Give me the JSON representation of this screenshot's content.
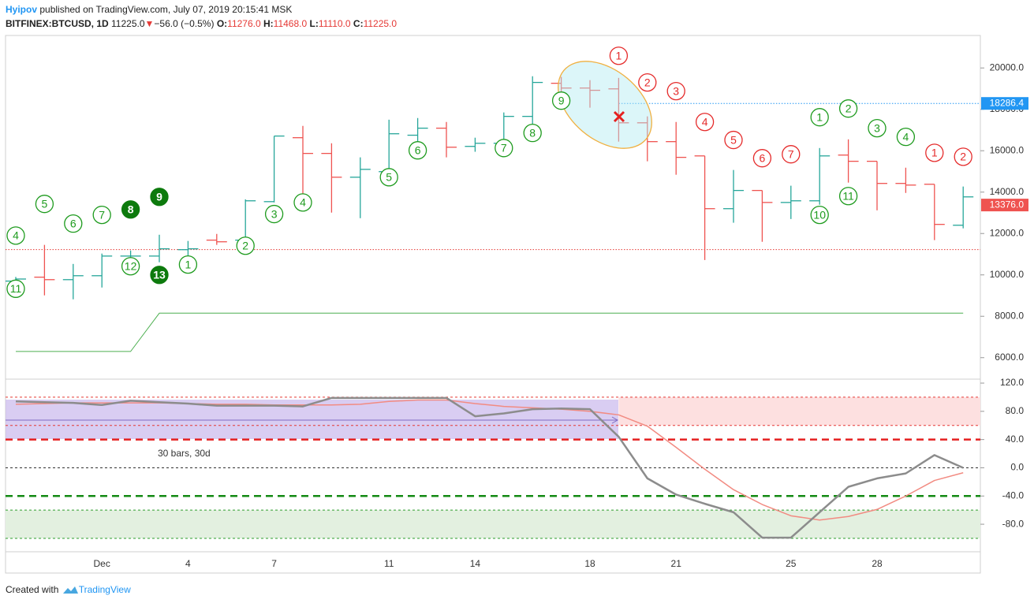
{
  "header": {
    "author": "Hyipov",
    "published": "published on TradingView.com, July 07, 2019 20:15:41 MSK",
    "symbol": "BITFINEX:BTCUSD, 1D",
    "last": "11225.0",
    "arrow": "▼",
    "change": "−56.0 (−0.5%)",
    "o_label": "O:",
    "o": "11276.0",
    "h_label": "H:",
    "h": "11468.0",
    "l_label": "L:",
    "l": "11110.0",
    "c_label": "C:",
    "c": "11225.0"
  },
  "measure": {
    "text": "30 bars, 30d"
  },
  "footer": {
    "created": "Created with",
    "brand": "TradingView"
  },
  "chart_data": [
    {
      "type": "ohlc",
      "categories": [
        null,
        null,
        null,
        "Dec",
        null,
        null,
        "4",
        null,
        null,
        "7",
        null,
        null,
        null,
        "11",
        null,
        null,
        "14",
        null,
        null,
        null,
        "18",
        null,
        null,
        "21",
        null,
        null,
        null,
        "25",
        null,
        null,
        "28",
        null,
        null,
        null
      ],
      "open": [
        9700,
        9890,
        9770,
        9960,
        10910,
        10910,
        11220,
        11680,
        11680,
        13540,
        16630,
        15870,
        14720,
        14990,
        16750,
        17090,
        16210,
        16360,
        17660,
        19260,
        19030,
        18990,
        17350,
        16440,
        15750,
        13200,
        14080,
        13500,
        13580,
        15790,
        15490,
        14420,
        14380,
        12400
      ],
      "high": [
        9900,
        11450,
        10530,
        11030,
        11180,
        11940,
        11640,
        11980,
        13650,
        16710,
        17200,
        16360,
        15680,
        17500,
        17580,
        17390,
        16630,
        17850,
        19600,
        19570,
        19410,
        19520,
        17660,
        17390,
        15750,
        15070,
        14080,
        14310,
        16130,
        16550,
        15490,
        15180,
        14380,
        14270
      ],
      "low": [
        9600,
        9010,
        8820,
        9390,
        10720,
        10610,
        10720,
        11450,
        11680,
        13500,
        13770,
        13010,
        12740,
        14920,
        16440,
        15680,
        15950,
        16060,
        17120,
        18730,
        18080,
        16440,
        15490,
        14840,
        10720,
        12520,
        11600,
        12700,
        13390,
        14460,
        13120,
        13960,
        11680,
        12250
      ],
      "close": [
        9800,
        9770,
        9960,
        10910,
        10910,
        11260,
        11260,
        11600,
        13580,
        16710,
        15870,
        14720,
        15100,
        16820,
        17090,
        16170,
        16360,
        17660,
        19300,
        19030,
        18920,
        17350,
        16440,
        15680,
        13200,
        14080,
        13500,
        13580,
        15750,
        15490,
        14420,
        14340,
        12440,
        13770
      ],
      "up_color": "#26a69a",
      "down_color": "#ef5350",
      "lines": [
        {
          "color": "#4caf50",
          "values": [
            6300,
            6300,
            6300,
            6300,
            6300,
            8150,
            8150,
            8150,
            8150,
            8150,
            8150,
            8150,
            8150,
            8150,
            8150,
            8150,
            8150,
            8150,
            8150,
            8150,
            8150,
            8150,
            8150,
            8150,
            8150,
            8150,
            8150,
            8150,
            8150,
            8150,
            8150,
            8150,
            8150,
            8150
          ]
        }
      ],
      "levels": [
        {
          "value": 11225,
          "color": "#e53935",
          "style": "dotted"
        },
        {
          "value": 18286.4,
          "label": "18286.4",
          "start": 21,
          "color": "#2196f3",
          "style": "dotted"
        }
      ],
      "price_tag": {
        "value": 13376,
        "label": "13376.0",
        "color": "#ef5350"
      },
      "ylim": [
        5000,
        21570
      ],
      "yticks": [
        {
          "value": 6000,
          "label": "6000.0"
        },
        {
          "value": 8000,
          "label": "8000.0"
        },
        {
          "value": 10000,
          "label": "10000.0"
        },
        {
          "value": 12000,
          "label": "12000.0"
        },
        {
          "value": 14000,
          "label": "14000.0"
        },
        {
          "value": 16000,
          "label": "16000.0"
        },
        {
          "value": 18000,
          "label": "18000.0"
        },
        {
          "value": 20000,
          "label": "20000.0"
        }
      ],
      "annotations": [
        {
          "text": "4",
          "at": 0,
          "price": 11900,
          "color": "#1e9b1e",
          "filled": false
        },
        {
          "text": "11",
          "at": 0,
          "price": 9330,
          "color": "#1e9b1e",
          "filled": false
        },
        {
          "text": "5",
          "at": 1,
          "price": 13430,
          "color": "#1e9b1e",
          "filled": false
        },
        {
          "text": "6",
          "at": 2,
          "price": 12480,
          "color": "#1e9b1e",
          "filled": false
        },
        {
          "text": "7",
          "at": 3,
          "price": 12900,
          "color": "#1e9b1e",
          "filled": false
        },
        {
          "text": "8",
          "at": 4,
          "price": 13160,
          "color": "#0d7a0d",
          "filled": true
        },
        {
          "text": "9",
          "at": 5,
          "price": 13770,
          "color": "#0d7a0d",
          "filled": true
        },
        {
          "text": "12",
          "at": 4,
          "price": 10420,
          "color": "#1e9b1e",
          "filled": false
        },
        {
          "text": "13",
          "at": 5,
          "price": 10000,
          "color": "#0d7a0d",
          "filled": true
        },
        {
          "text": "1",
          "at": 6,
          "price": 10500,
          "color": "#1e9b1e",
          "filled": false
        },
        {
          "text": "2",
          "at": 8,
          "price": 11410,
          "color": "#1e9b1e",
          "filled": false
        },
        {
          "text": "3",
          "at": 9,
          "price": 12940,
          "color": "#1e9b1e",
          "filled": false
        },
        {
          "text": "4",
          "at": 10,
          "price": 13500,
          "color": "#1e9b1e",
          "filled": false
        },
        {
          "text": "5",
          "at": 13,
          "price": 14720,
          "color": "#1e9b1e",
          "filled": false
        },
        {
          "text": "6",
          "at": 14,
          "price": 16020,
          "color": "#1e9b1e",
          "filled": false
        },
        {
          "text": "7",
          "at": 17,
          "price": 16130,
          "color": "#1e9b1e",
          "filled": false
        },
        {
          "text": "8",
          "at": 18,
          "price": 16860,
          "color": "#1e9b1e",
          "filled": false
        },
        {
          "text": "9",
          "at": 19,
          "price": 18420,
          "color": "#1e9b1e",
          "filled": false
        },
        {
          "text": "1",
          "at": 21,
          "price": 20590,
          "color": "#e52b2b",
          "filled": false
        },
        {
          "text": "2",
          "at": 22,
          "price": 19300,
          "color": "#e52b2b",
          "filled": false
        },
        {
          "text": "3",
          "at": 23,
          "price": 18880,
          "color": "#e52b2b",
          "filled": false
        },
        {
          "text": "4",
          "at": 24,
          "price": 17390,
          "color": "#e52b2b",
          "filled": false
        },
        {
          "text": "5",
          "at": 25,
          "price": 16520,
          "color": "#e52b2b",
          "filled": false
        },
        {
          "text": "6",
          "at": 26,
          "price": 15640,
          "color": "#e52b2b",
          "filled": false
        },
        {
          "text": "7",
          "at": 27,
          "price": 15830,
          "color": "#e52b2b",
          "filled": false
        },
        {
          "text": "1",
          "at": 28,
          "price": 17620,
          "color": "#1e9b1e",
          "filled": false
        },
        {
          "text": "2",
          "at": 29,
          "price": 18040,
          "color": "#1e9b1e",
          "filled": false
        },
        {
          "text": "3",
          "at": 30,
          "price": 17090,
          "color": "#1e9b1e",
          "filled": false
        },
        {
          "text": "4",
          "at": 31,
          "price": 16670,
          "color": "#1e9b1e",
          "filled": false
        },
        {
          "text": "11",
          "at": 29,
          "price": 13810,
          "color": "#1e9b1e",
          "filled": false
        },
        {
          "text": "10",
          "at": 28,
          "price": 12900,
          "color": "#1e9b1e",
          "filled": false
        },
        {
          "text": "1",
          "at": 32,
          "price": 15900,
          "color": "#e52b2b",
          "filled": false
        },
        {
          "text": "2",
          "at": 33,
          "price": 15710,
          "color": "#e52b2b",
          "filled": false
        }
      ]
    },
    {
      "type": "line",
      "series": [
        {
          "color": "#f28b82",
          "width": 1.5,
          "values": [
            90,
            91,
            92,
            92,
            92,
            92,
            91,
            90,
            90,
            89,
            89,
            89,
            90,
            94,
            96,
            96,
            91,
            87,
            85,
            83,
            80,
            75,
            59,
            29,
            -2,
            -31,
            -52,
            -68,
            -74,
            -69,
            -59,
            -40,
            -18,
            -7
          ]
        },
        {
          "color": "#8c8c8c",
          "width": 2.5,
          "values": [
            94,
            93,
            92,
            89,
            95,
            93,
            91,
            88,
            88,
            88,
            87,
            99,
            99,
            99,
            99,
            99,
            73,
            77,
            83,
            84,
            83,
            44,
            -15,
            -38,
            -51,
            -63,
            -99,
            -99,
            -63,
            -27,
            -15,
            -8,
            18,
            0
          ]
        }
      ],
      "bands": [
        {
          "from": 60,
          "to": 100,
          "start": 21,
          "color": "#fde0e0"
        },
        {
          "from": -60,
          "to": -100,
          "color": "#e3f0e0"
        }
      ],
      "levels": [
        {
          "value": 100,
          "color": "#e53935",
          "style": "thin"
        },
        {
          "value": 60,
          "color": "#e53935",
          "style": "thin"
        },
        {
          "value": 40,
          "color": "#e52020",
          "style": "thick"
        },
        {
          "value": 0,
          "color": "#333333",
          "style": "thin"
        },
        {
          "value": -40,
          "color": "#138a13",
          "style": "thick"
        },
        {
          "value": -60,
          "color": "#2e9e2e",
          "style": "thin"
        },
        {
          "value": -100,
          "color": "#2e9e2e",
          "style": "thin"
        }
      ],
      "ylim": [
        -119,
        124.5
      ],
      "yticks": [
        {
          "value": 120,
          "label": "120.0"
        },
        {
          "value": 80,
          "label": "80.0"
        },
        {
          "value": 40,
          "label": "40.0"
        },
        {
          "value": 0,
          "label": "0.0"
        },
        {
          "value": -40,
          "label": "-40.0"
        },
        {
          "value": -80,
          "label": "-80.0"
        }
      ]
    }
  ]
}
